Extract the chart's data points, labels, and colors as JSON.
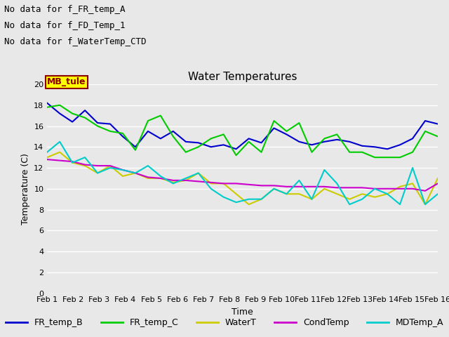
{
  "title": "Water Temperatures",
  "xlabel": "Time",
  "ylabel": "Temperature (C)",
  "ylim": [
    0,
    20
  ],
  "yticks": [
    0,
    2,
    4,
    6,
    8,
    10,
    12,
    14,
    16,
    18,
    20
  ],
  "x_labels": [
    "Feb 1",
    "Feb 2",
    "Feb 3",
    "Feb 4",
    "Feb 5",
    "Feb 6",
    "Feb 7",
    "Feb 8",
    "Feb 9",
    "Feb 10",
    "Feb 11",
    "Feb 12",
    "Feb 13",
    "Feb 14",
    "Feb 15",
    "Feb 16"
  ],
  "annotations": [
    "No data for f_FR_temp_A",
    "No data for f_FD_Temp_1",
    "No data for f_WaterTemp_CTD"
  ],
  "cursor_label": "MB_tule",
  "FR_temp_B": [
    18.2,
    17.2,
    16.4,
    17.5,
    16.3,
    16.2,
    15.0,
    14.0,
    15.5,
    14.8,
    15.5,
    14.5,
    14.4,
    14.0,
    14.2,
    13.8,
    14.8,
    14.4,
    15.8,
    15.2,
    14.5,
    14.2,
    14.5,
    14.7,
    14.5,
    14.1,
    14.0,
    13.8,
    14.2,
    14.8,
    16.5,
    16.2
  ],
  "FR_temp_C": [
    17.8,
    18.0,
    17.2,
    16.8,
    16.0,
    15.5,
    15.3,
    13.7,
    16.5,
    17.0,
    15.0,
    13.5,
    14.0,
    14.8,
    15.2,
    13.2,
    14.5,
    13.5,
    16.5,
    15.5,
    16.3,
    13.5,
    14.8,
    15.2,
    13.5,
    13.5,
    13.0,
    13.0,
    13.0,
    13.5,
    15.5,
    15.0
  ],
  "WaterT": [
    13.0,
    13.5,
    12.5,
    12.2,
    11.5,
    12.2,
    11.2,
    11.5,
    11.0,
    11.0,
    10.6,
    10.8,
    11.5,
    10.5,
    10.5,
    9.5,
    8.5,
    9.0,
    10.0,
    9.5,
    9.5,
    9.0,
    10.0,
    9.5,
    9.0,
    9.5,
    9.2,
    9.5,
    10.2,
    10.5,
    8.5,
    11.0
  ],
  "CondTemp": [
    12.8,
    12.7,
    12.6,
    12.3,
    12.2,
    12.2,
    11.8,
    11.5,
    11.1,
    11.0,
    10.8,
    10.8,
    10.7,
    10.6,
    10.5,
    10.5,
    10.4,
    10.3,
    10.3,
    10.2,
    10.2,
    10.2,
    10.2,
    10.1,
    10.1,
    10.1,
    10.0,
    10.0,
    10.0,
    10.0,
    9.8,
    10.5
  ],
  "MDTemp_A": [
    13.5,
    14.5,
    12.5,
    13.0,
    11.5,
    12.0,
    11.8,
    11.5,
    12.2,
    11.2,
    10.5,
    11.0,
    11.5,
    10.0,
    9.2,
    8.7,
    9.0,
    9.0,
    10.0,
    9.5,
    10.8,
    9.0,
    11.8,
    10.5,
    8.5,
    9.0,
    10.0,
    9.5,
    8.5,
    12.0,
    8.5,
    9.5
  ],
  "line_colors": {
    "FR_temp_B": "#0000cc",
    "FR_temp_C": "#00cc00",
    "WaterT": "#cccc00",
    "CondTemp": "#cc00cc",
    "MDTemp_A": "#00cccc"
  },
  "bg_color": "#e8e8e8",
  "plot_bg_color": "#e8e8e8",
  "grid_color": "#ffffff",
  "title_fontsize": 11,
  "axis_fontsize": 9,
  "tick_fontsize": 8,
  "legend_fontsize": 9,
  "annot_fontsize": 9
}
